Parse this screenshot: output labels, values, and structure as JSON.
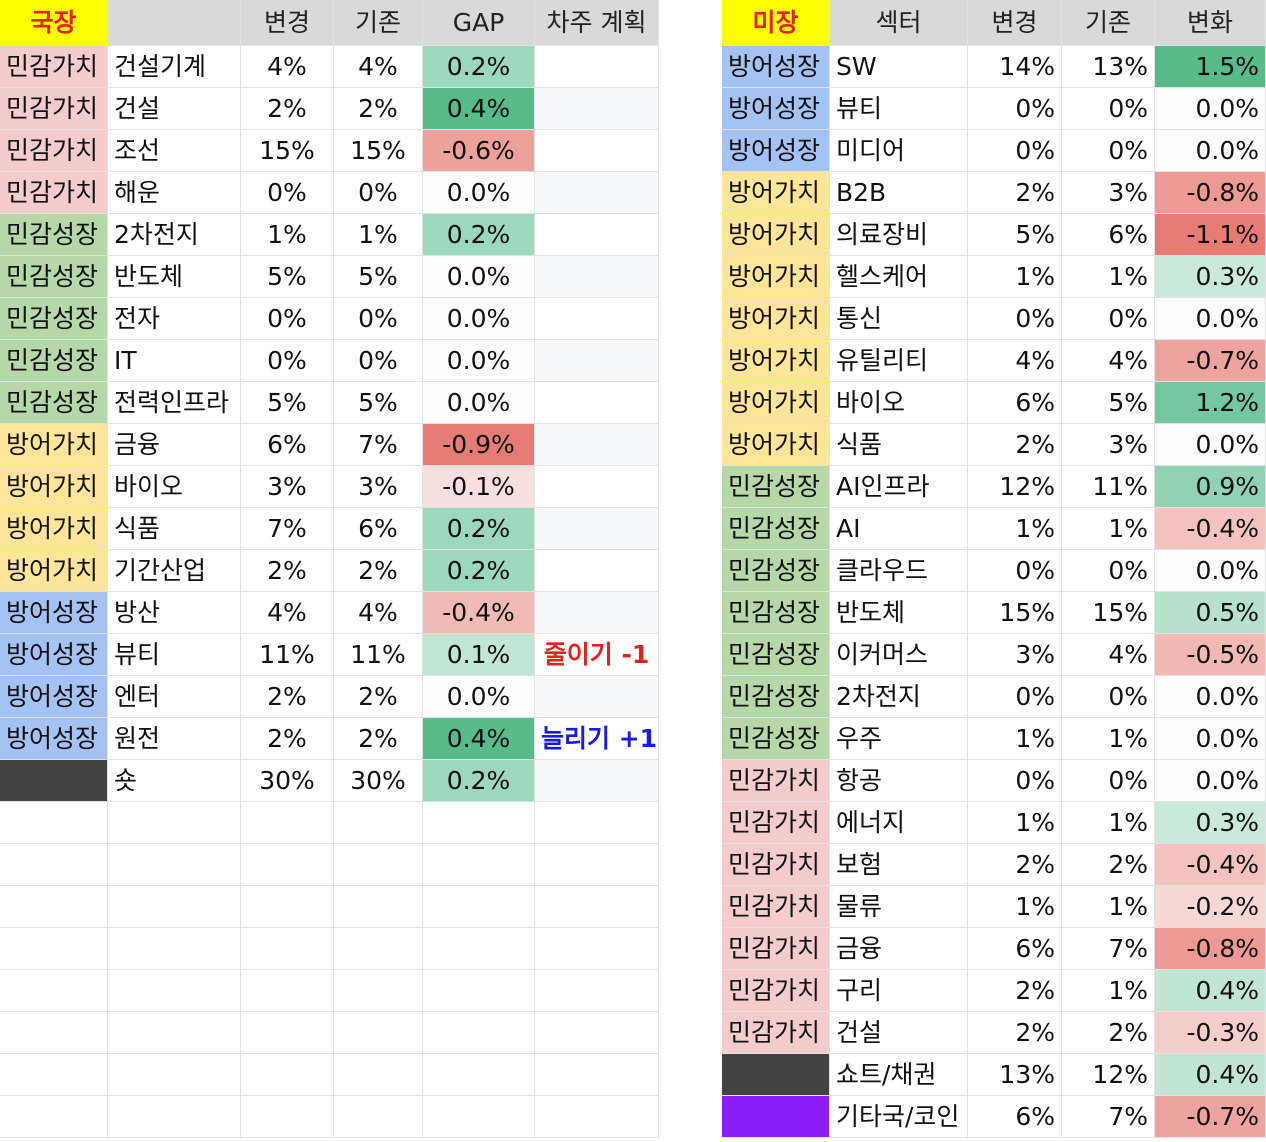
{
  "group_colors": {
    "민감가치": "#f4cccc",
    "민감성장": "#b6d7a8",
    "방어가치": "#ffe599",
    "방어성장": "#a4c2f4"
  },
  "positive_color": "#57bb8a",
  "negative_color": "#e67c73",
  "left": {
    "label": "국장",
    "columns": [
      "변경",
      "기존",
      "GAP",
      "차주 계획"
    ],
    "rows": [
      {
        "group": "민감가치",
        "sector": "건설기계",
        "new": "4%",
        "old": "4%",
        "change": "0.2%"
      },
      {
        "group": "민감가치",
        "sector": "건설",
        "new": "2%",
        "old": "2%",
        "change": "0.4%"
      },
      {
        "group": "민감가치",
        "sector": "조선",
        "new": "15%",
        "old": "15%",
        "change": "-0.6%"
      },
      {
        "group": "민감가치",
        "sector": "해운",
        "new": "0%",
        "old": "0%",
        "change": "0.0%"
      },
      {
        "group": "민감성장",
        "sector": "2차전지",
        "new": "1%",
        "old": "1%",
        "change": "0.2%"
      },
      {
        "group": "민감성장",
        "sector": "반도체",
        "new": "5%",
        "old": "5%",
        "change": "0.0%"
      },
      {
        "group": "민감성장",
        "sector": "전자",
        "new": "0%",
        "old": "0%",
        "change": "0.0%"
      },
      {
        "group": "민감성장",
        "sector": "IT",
        "new": "0%",
        "old": "0%",
        "change": "0.0%"
      },
      {
        "group": "민감성장",
        "sector": "전력인프라",
        "new": "5%",
        "old": "5%",
        "change": "0.0%"
      },
      {
        "group": "방어가치",
        "sector": "금융",
        "new": "6%",
        "old": "7%",
        "change": "-0.9%"
      },
      {
        "group": "방어가치",
        "sector": "바이오",
        "new": "3%",
        "old": "3%",
        "change": "-0.1%"
      },
      {
        "group": "방어가치",
        "sector": "식품",
        "new": "7%",
        "old": "6%",
        "change": "0.2%"
      },
      {
        "group": "방어가치",
        "sector": "기간산업",
        "new": "2%",
        "old": "2%",
        "change": "0.2%"
      },
      {
        "group": "방어성장",
        "sector": "방산",
        "new": "4%",
        "old": "4%",
        "change": "-0.4%"
      },
      {
        "group": "방어성장",
        "sector": "뷰티",
        "new": "11%",
        "old": "11%",
        "change": "0.1%",
        "plan": {
          "text": "줄이기 -1",
          "color": "#e6211c"
        }
      },
      {
        "group": "방어성장",
        "sector": "엔터",
        "new": "2%",
        "old": "2%",
        "change": "0.0%"
      },
      {
        "group": "방어성장",
        "sector": "원전",
        "new": "2%",
        "old": "2%",
        "change": "0.4%",
        "plan": {
          "text": "늘리기 +1",
          "color": "#1a1ae6"
        }
      },
      {
        "swatch": "#434343",
        "sector": "숏",
        "new": "30%",
        "old": "30%",
        "change": "0.2%"
      }
    ]
  },
  "right": {
    "label": "미장",
    "columns": [
      "섹터",
      "변경",
      "기존",
      "변화"
    ],
    "rows": [
      {
        "group": "방어성장",
        "sector": "SW",
        "new": "14%",
        "old": "13%",
        "change": "1.5%"
      },
      {
        "group": "방어성장",
        "sector": "뷰티",
        "new": "0%",
        "old": "0%",
        "change": "0.0%"
      },
      {
        "group": "방어성장",
        "sector": "미디어",
        "new": "0%",
        "old": "0%",
        "change": "0.0%"
      },
      {
        "group": "방어가치",
        "sector": "B2B",
        "new": "2%",
        "old": "3%",
        "change": "-0.8%"
      },
      {
        "group": "방어가치",
        "sector": "의료장비",
        "new": "5%",
        "old": "6%",
        "change": "-1.1%"
      },
      {
        "group": "방어가치",
        "sector": "헬스케어",
        "new": "1%",
        "old": "1%",
        "change": "0.3%"
      },
      {
        "group": "방어가치",
        "sector": "통신",
        "new": "0%",
        "old": "0%",
        "change": "0.0%"
      },
      {
        "group": "방어가치",
        "sector": "유틸리티",
        "new": "4%",
        "old": "4%",
        "change": "-0.7%"
      },
      {
        "group": "방어가치",
        "sector": "바이오",
        "new": "6%",
        "old": "5%",
        "change": "1.2%"
      },
      {
        "group": "방어가치",
        "sector": "식품",
        "new": "2%",
        "old": "3%",
        "change": "0.0%"
      },
      {
        "group": "민감성장",
        "sector": "AI인프라",
        "new": "12%",
        "old": "11%",
        "change": "0.9%"
      },
      {
        "group": "민감성장",
        "sector": "AI",
        "new": "1%",
        "old": "1%",
        "change": "-0.4%"
      },
      {
        "group": "민감성장",
        "sector": "클라우드",
        "new": "0%",
        "old": "0%",
        "change": "0.0%"
      },
      {
        "group": "민감성장",
        "sector": "반도체",
        "new": "15%",
        "old": "15%",
        "change": "0.5%"
      },
      {
        "group": "민감성장",
        "sector": "이커머스",
        "new": "3%",
        "old": "4%",
        "change": "-0.5%"
      },
      {
        "group": "민감성장",
        "sector": "2차전지",
        "new": "0%",
        "old": "0%",
        "change": "0.0%"
      },
      {
        "group": "민감성장",
        "sector": "우주",
        "new": "1%",
        "old": "1%",
        "change": "0.0%"
      },
      {
        "group": "민감가치",
        "sector": "항공",
        "new": "0%",
        "old": "0%",
        "change": "0.0%"
      },
      {
        "group": "민감가치",
        "sector": "에너지",
        "new": "1%",
        "old": "1%",
        "change": "0.3%"
      },
      {
        "group": "민감가치",
        "sector": "보험",
        "new": "2%",
        "old": "2%",
        "change": "-0.4%"
      },
      {
        "group": "민감가치",
        "sector": "물류",
        "new": "1%",
        "old": "1%",
        "change": "-0.2%"
      },
      {
        "group": "민감가치",
        "sector": "금융",
        "new": "6%",
        "old": "7%",
        "change": "-0.8%"
      },
      {
        "group": "민감가치",
        "sector": "구리",
        "new": "2%",
        "old": "1%",
        "change": "0.4%"
      },
      {
        "group": "민감가치",
        "sector": "건설",
        "new": "2%",
        "old": "2%",
        "change": "-0.3%"
      },
      {
        "swatch": "#434343",
        "sector": "쇼트/채권",
        "new": "13%",
        "old": "12%",
        "change": "0.4%"
      },
      {
        "swatch": "#8a1cf5",
        "sector": "기타국/코인",
        "new": "6%",
        "old": "7%",
        "change": "-0.7%"
      }
    ]
  }
}
